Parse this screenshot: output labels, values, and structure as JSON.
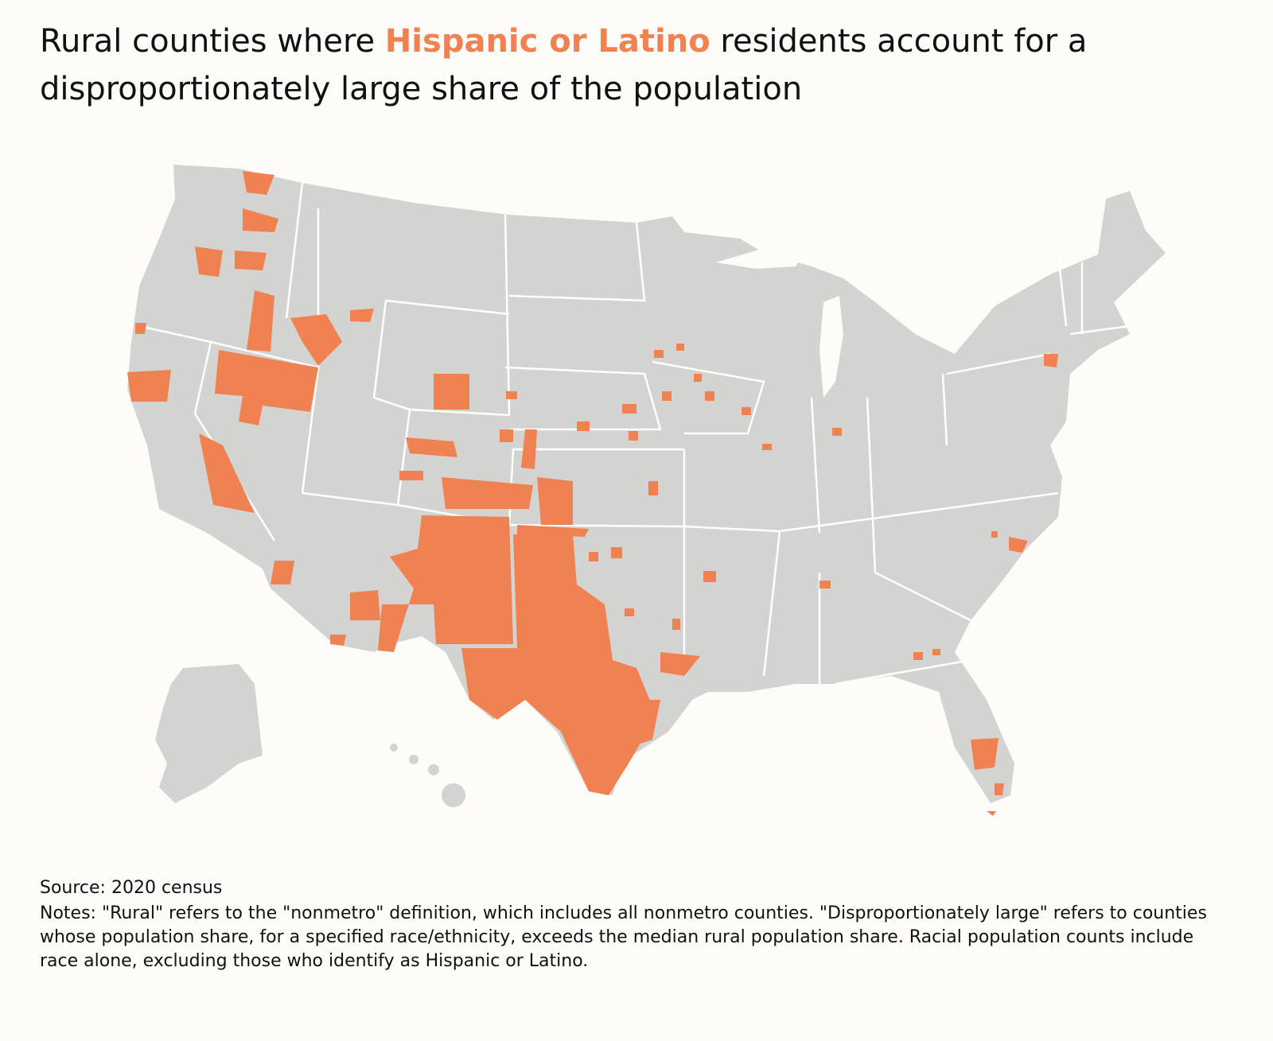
{
  "title": {
    "before": "Rural counties where ",
    "highlight": "Hispanic or Latino",
    "after": " residents account for a disproportionately large share of the population"
  },
  "source": "Source: 2020 census",
  "notes": "Notes: \"Rural\" refers to the \"nonmetro\" definition, which includes all nonmetro counties. \"Disproportionately large\" refers to counties whose population share, for a specified race/ethnicity, exceeds the median rural population share. Racial population counts include race alone, excluding those who identify as Hispanic or Latino."
}
